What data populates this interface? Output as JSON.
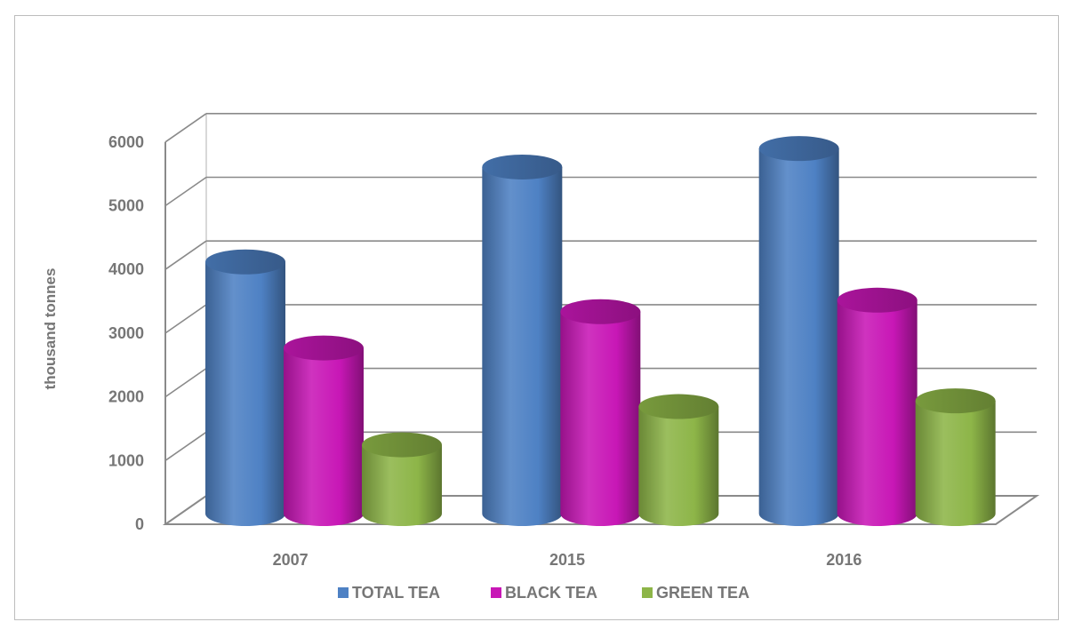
{
  "chart_data": {
    "type": "bar",
    "ylabel": "thousand tonnes",
    "ylim": [
      0,
      6000
    ],
    "yticks": [
      0,
      1000,
      2000,
      3000,
      4000,
      5000,
      6000
    ],
    "categories": [
      "2007",
      "2015",
      "2016"
    ],
    "series": [
      {
        "name": "TOTAL TEA",
        "values": [
          3950,
          5440,
          5730
        ]
      },
      {
        "name": "BLACK TEA",
        "values": [
          2600,
          3170,
          3350
        ]
      },
      {
        "name": "GREEN TEA",
        "values": [
          1080,
          1680,
          1770
        ]
      }
    ],
    "colors": [
      "#4e81c4",
      "#c817b6",
      "#8db548"
    ],
    "grid": true,
    "legend_position": "bottom",
    "style": "3d-cylinder"
  }
}
